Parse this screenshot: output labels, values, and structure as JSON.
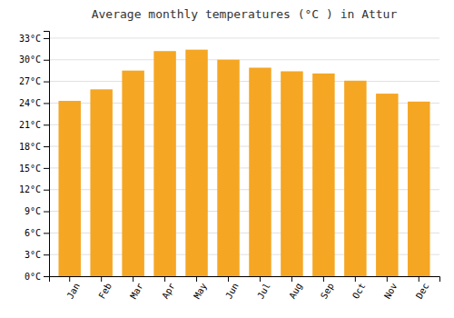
{
  "chart_data": {
    "type": "bar",
    "title": "Average monthly temperatures (°C ) in Attur",
    "categories": [
      "Jan",
      "Feb",
      "Mar",
      "Apr",
      "May",
      "Jun",
      "Jul",
      "Aug",
      "Sep",
      "Oct",
      "Nov",
      "Dec"
    ],
    "values": [
      24.3,
      25.9,
      28.5,
      31.2,
      31.4,
      30.0,
      28.9,
      28.4,
      28.1,
      27.1,
      25.3,
      24.2
    ],
    "color": "#F5A623",
    "ylim": [
      0,
      34
    ],
    "yticks": [
      {
        "value": 0,
        "label": "0°C"
      },
      {
        "value": 3,
        "label": "3°C"
      },
      {
        "value": 6,
        "label": "6°C"
      },
      {
        "value": 9,
        "label": "9°C"
      },
      {
        "value": 12,
        "label": "12°C"
      },
      {
        "value": 15,
        "label": "15°C"
      },
      {
        "value": 18,
        "label": "18°C"
      },
      {
        "value": 21,
        "label": "21°C"
      },
      {
        "value": 24,
        "label": "24°C"
      },
      {
        "value": 27,
        "label": "27°C"
      },
      {
        "value": 30,
        "label": "30°C"
      },
      {
        "value": 33,
        "label": "33°C"
      }
    ],
    "grid": true
  }
}
